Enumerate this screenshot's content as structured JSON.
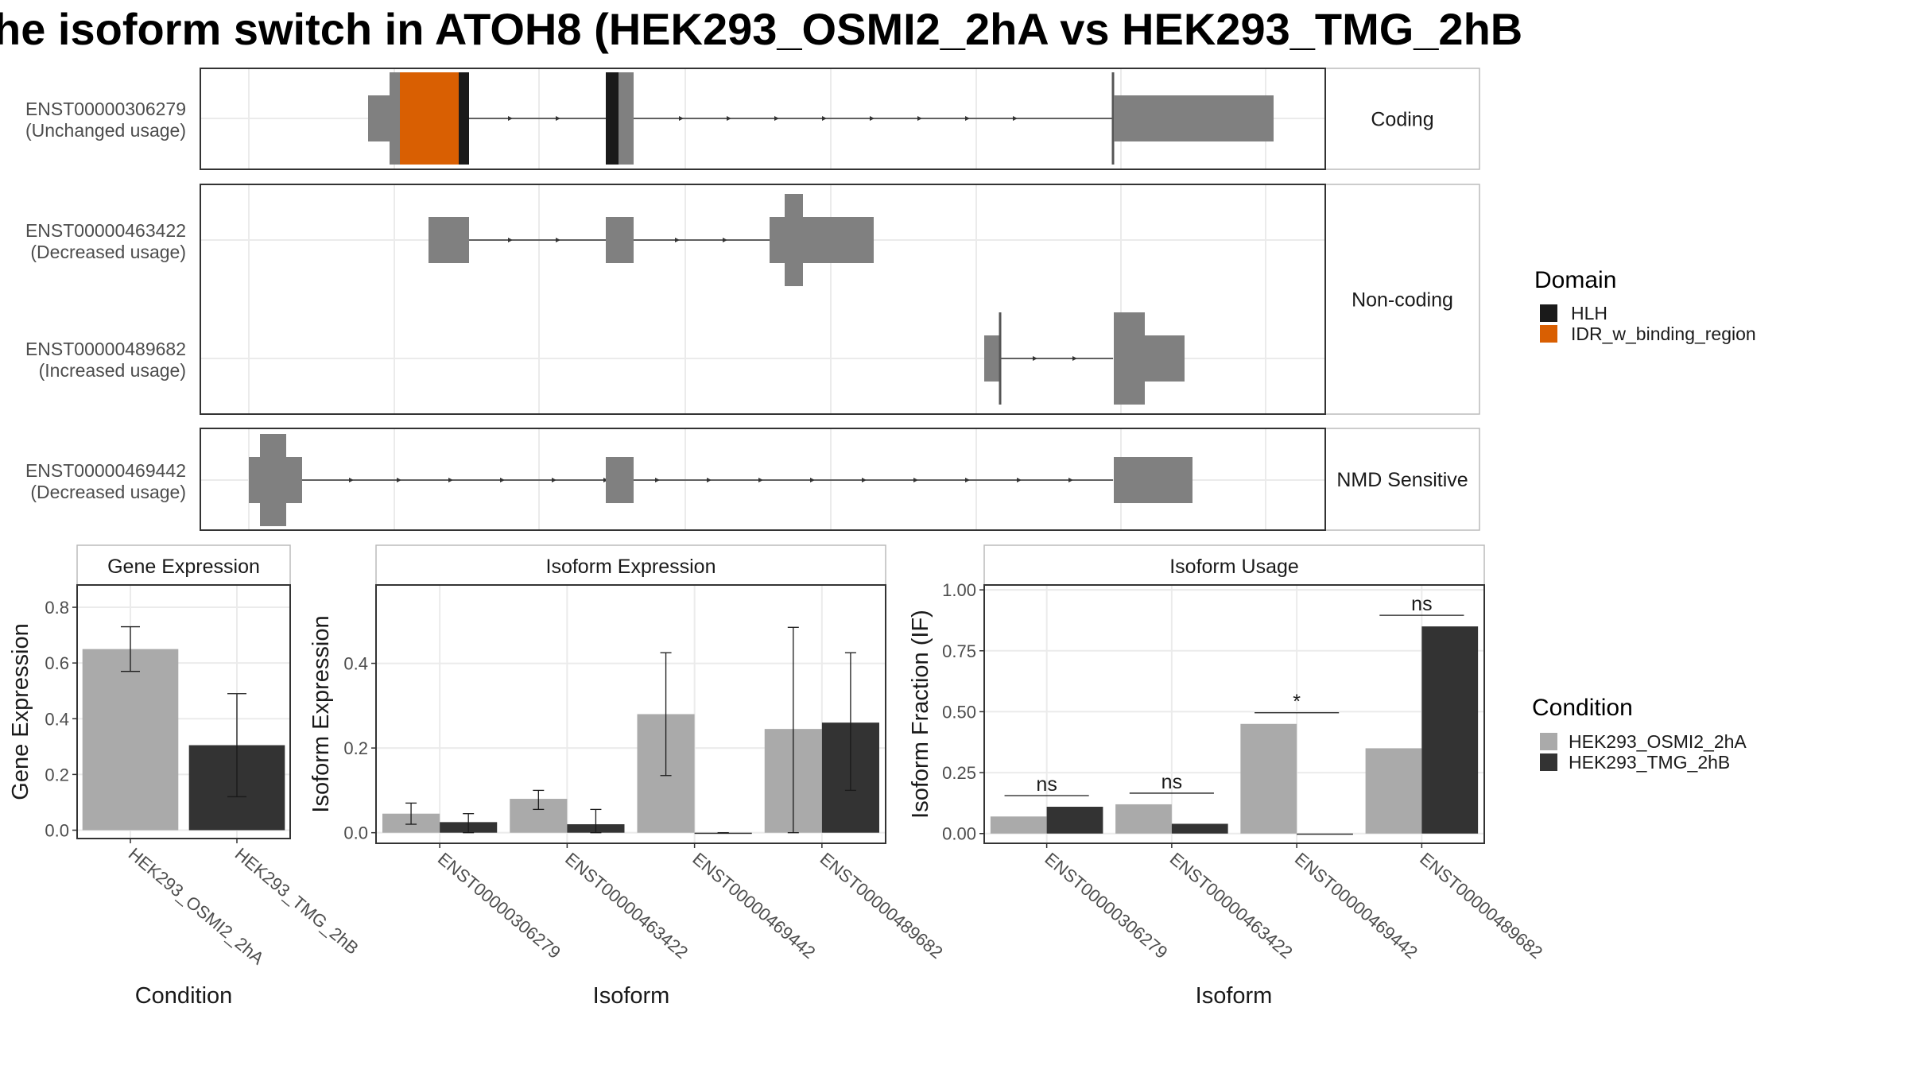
{
  "title": "he isoform switch in ATOH8 (HEK293_OSMI2_2hA vs HEK293_TMG_2hB",
  "colors": {
    "exon": "#808080",
    "hlh": "#1a1a1a",
    "idr": "#d95f02",
    "cond_a": "#aaaaaa",
    "cond_b": "#333333",
    "panel_border": "#333333",
    "strip_border": "#bbbbbb",
    "grid": "#ebebeb"
  },
  "structure": {
    "transcripts": [
      {
        "id": "ENST00000306279",
        "usage": "(Unchanged usage)",
        "group": 0
      },
      {
        "id": "ENST00000463422",
        "usage": "(Decreased usage)",
        "group": 1
      },
      {
        "id": "ENST00000489682",
        "usage": "(Increased usage)",
        "group": 1
      },
      {
        "id": "ENST00000469442",
        "usage": "(Decreased usage)",
        "group": 2
      }
    ],
    "groups": [
      "Coding",
      "Non-coding",
      "NMD Sensitive"
    ]
  },
  "legend_domain": {
    "title": "Domain",
    "items": [
      {
        "label": "HLH",
        "color": "#1a1a1a"
      },
      {
        "label": "IDR_w_binding_region",
        "color": "#d95f02"
      }
    ]
  },
  "legend_condition": {
    "title": "Condition",
    "items": [
      {
        "label": "HEK293_OSMI2_2hA",
        "color": "#aaaaaa"
      },
      {
        "label": "HEK293_TMG_2hB",
        "color": "#333333"
      }
    ]
  },
  "chart_data": [
    {
      "type": "bar",
      "title": "Gene Expression",
      "xlabel": "Condition",
      "ylabel": "Gene Expression",
      "categories": [
        "HEK293_OSMI2_2hA",
        "HEK293_TMG_2hB"
      ],
      "values": [
        0.65,
        0.305
      ],
      "errors": [
        [
          0.57,
          0.73
        ],
        [
          0.12,
          0.49
        ]
      ],
      "yticks": [
        "0.0",
        "0.2",
        "0.4",
        "0.6",
        "0.8"
      ],
      "ylim": [
        -0.03,
        0.88
      ]
    },
    {
      "type": "bar",
      "title": "Isoform Expression",
      "xlabel": "Isoform",
      "ylabel": "Isoform Expression",
      "categories": [
        "ENST00000306279",
        "ENST00000463422",
        "ENST00000469442",
        "ENST00000489682"
      ],
      "series": [
        {
          "name": "HEK293_OSMI2_2hA",
          "values": [
            0.045,
            0.08,
            0.28,
            0.245
          ],
          "errors": [
            [
              0.02,
              0.07
            ],
            [
              0.055,
              0.1
            ],
            [
              0.135,
              0.425
            ],
            [
              0.0,
              0.485
            ]
          ]
        },
        {
          "name": "HEK293_TMG_2hB",
          "values": [
            0.025,
            0.02,
            0.0,
            0.26
          ],
          "errors": [
            [
              0.0,
              0.045
            ],
            [
              0.0,
              0.055
            ],
            [
              0.0,
              0.0
            ],
            [
              0.1,
              0.425
            ]
          ]
        }
      ],
      "yticks": [
        "0.0",
        "0.2",
        "0.4"
      ],
      "ylim": [
        -0.025,
        0.585
      ]
    },
    {
      "type": "bar",
      "title": "Isoform Usage",
      "xlabel": "Isoform",
      "ylabel": "Isoform Fraction (IF)",
      "categories": [
        "ENST00000306279",
        "ENST00000463422",
        "ENST00000469442",
        "ENST00000489682"
      ],
      "series": [
        {
          "name": "HEK293_OSMI2_2hA",
          "values": [
            0.07,
            0.12,
            0.45,
            0.35
          ]
        },
        {
          "name": "HEK293_TMG_2hB",
          "values": [
            0.11,
            0.04,
            0.0,
            0.85
          ]
        }
      ],
      "significance": [
        "ns",
        "ns",
        "*",
        "ns"
      ],
      "yticks": [
        "0.00",
        "0.25",
        "0.50",
        "0.75",
        "1.00"
      ],
      "ylim": [
        -0.04,
        1.02
      ]
    }
  ]
}
